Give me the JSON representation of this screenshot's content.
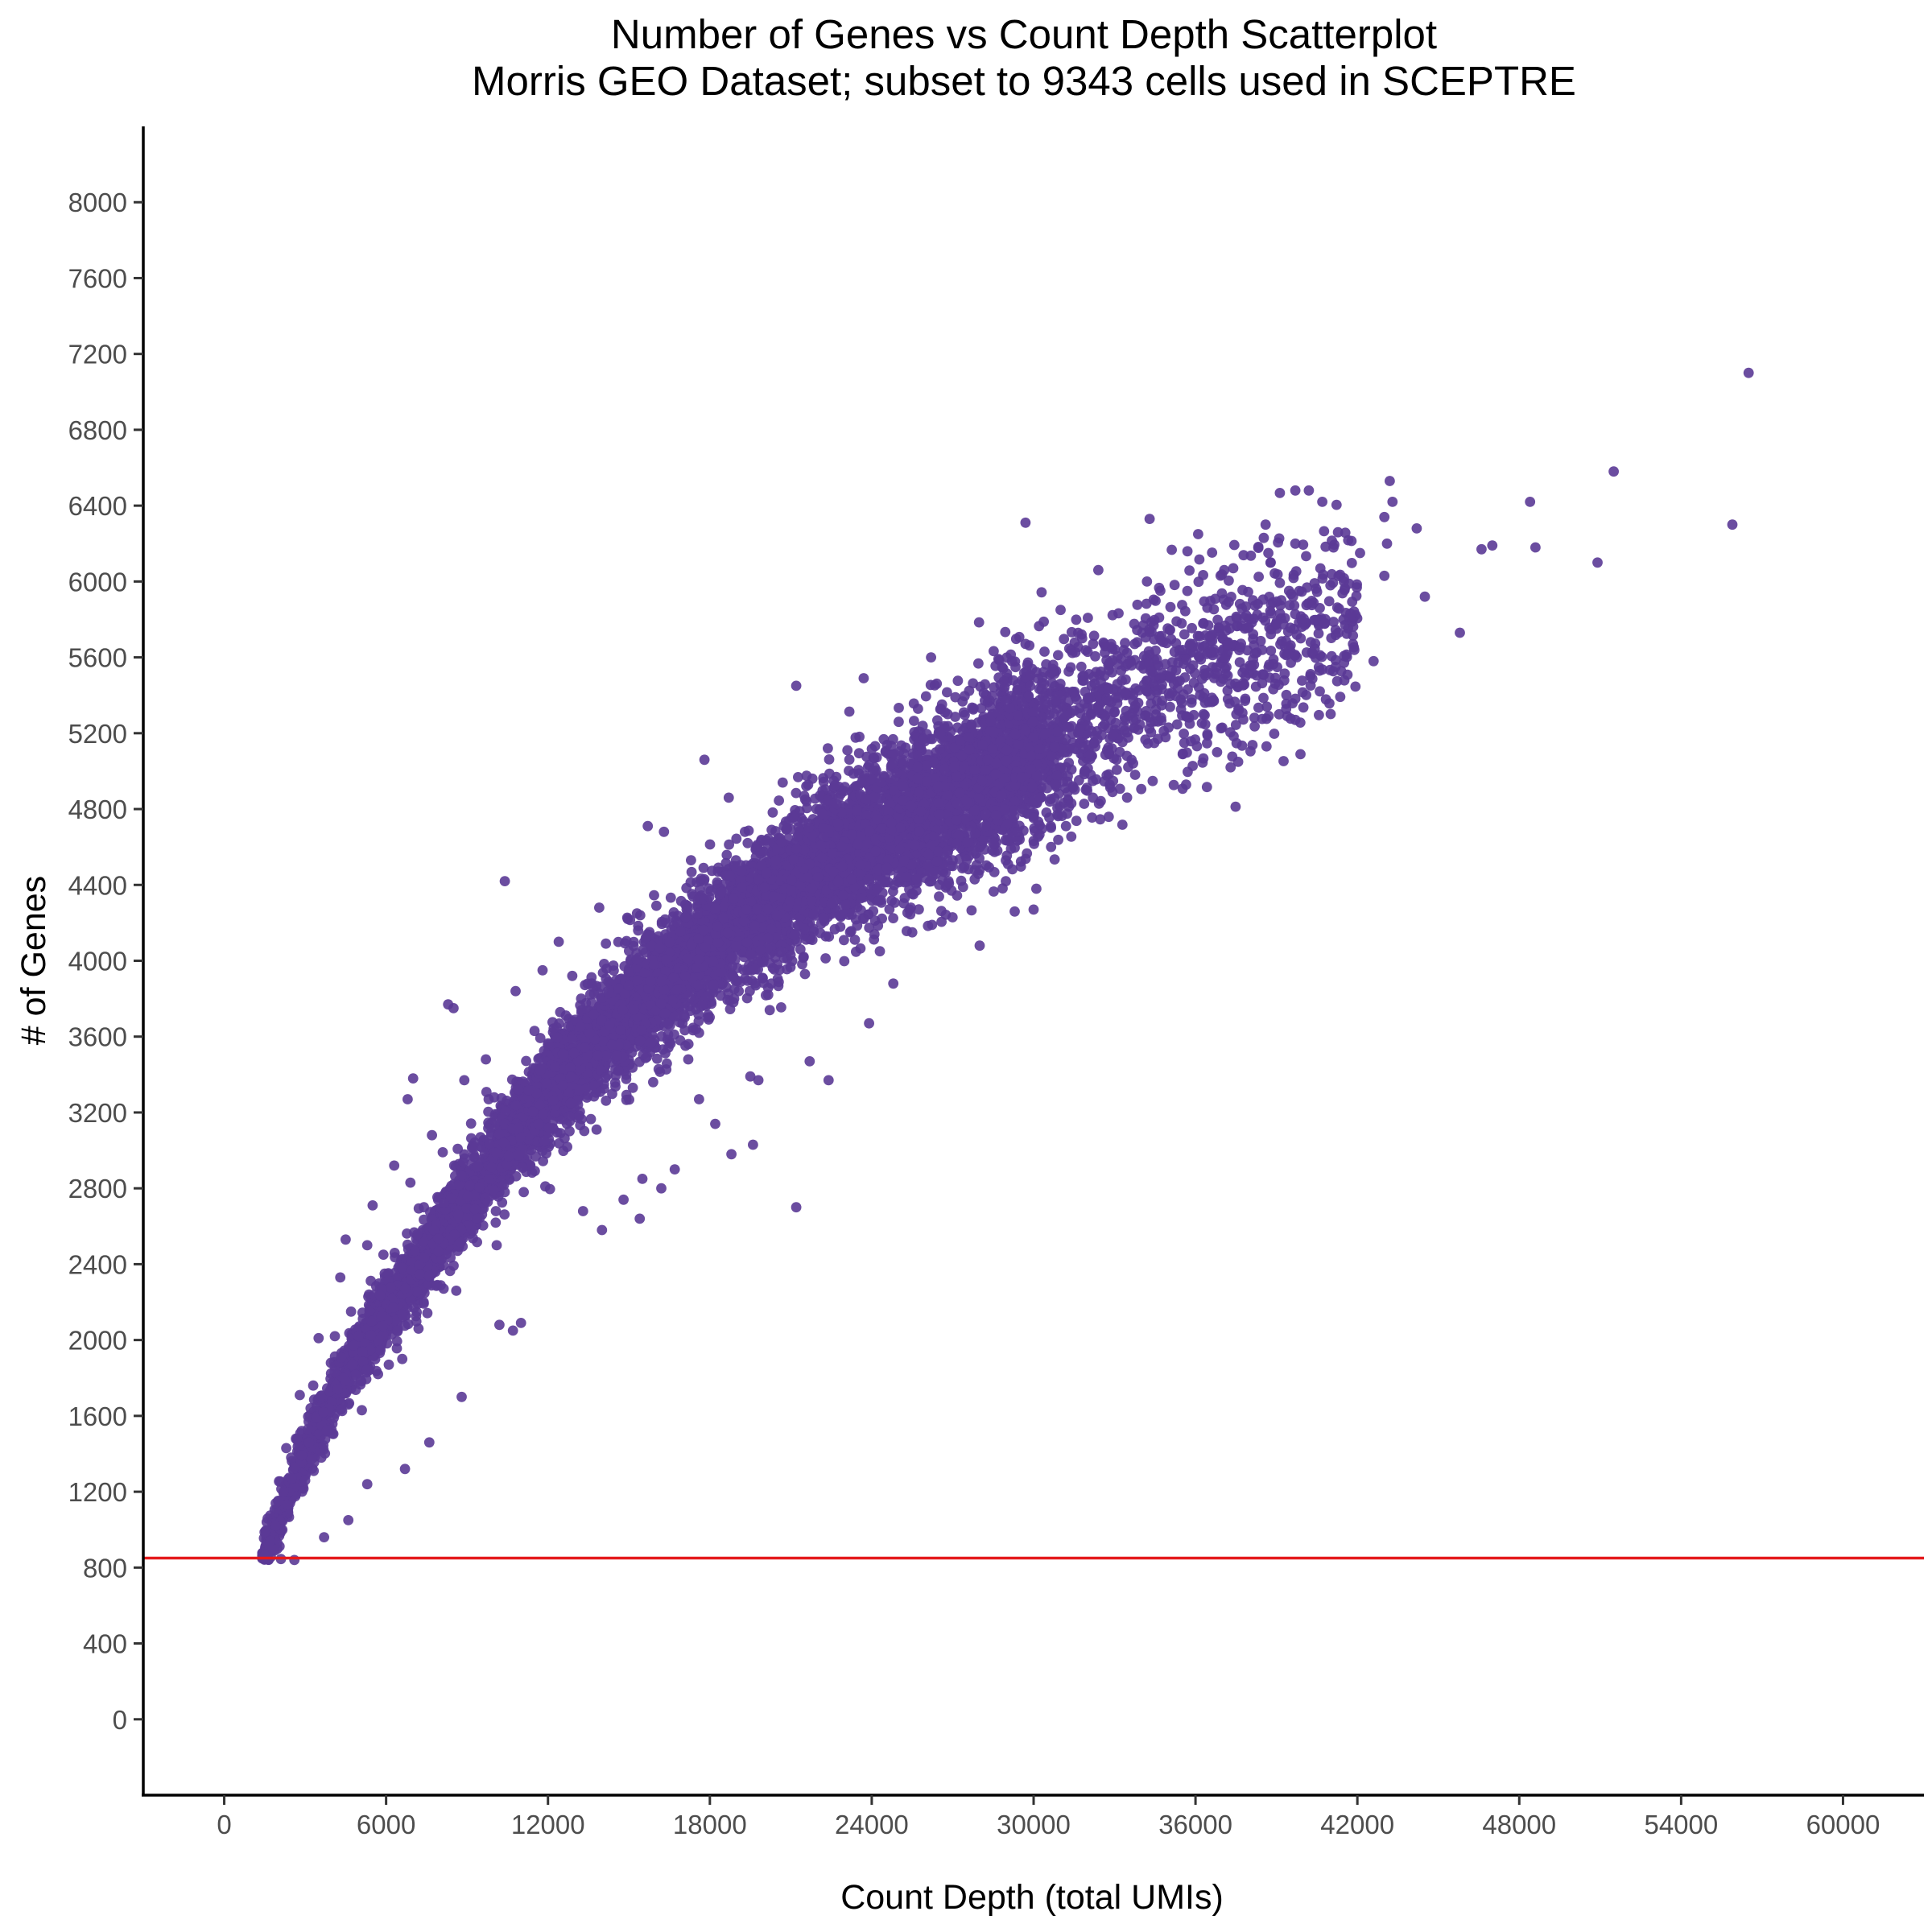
{
  "chart_data": {
    "type": "scatter",
    "title": "Number of Genes vs Count Depth Scatterplot",
    "subtitle": "Morris GEO Dataset; subset to 9343 cells used in SCEPTRE",
    "xlabel": "Count Depth (total UMIs)",
    "ylabel": "# of Genes",
    "xlim": [
      -3000,
      63000
    ],
    "ylim": [
      -400,
      8400
    ],
    "x_ticks": [
      0,
      6000,
      12000,
      18000,
      24000,
      30000,
      36000,
      42000,
      48000,
      54000,
      60000
    ],
    "y_ticks": [
      0,
      400,
      800,
      1200,
      1600,
      2000,
      2400,
      2800,
      3200,
      3600,
      4000,
      4400,
      4800,
      5200,
      5600,
      6000,
      6400,
      6800,
      7200,
      7600,
      8000
    ],
    "grid": false,
    "point_color": "#5b3a96",
    "n_cells": 9343,
    "reference_line": {
      "orientation": "horizontal",
      "y": 850,
      "color": "#e41a1c"
    },
    "trend": {
      "x": [
        1400,
        2000,
        3000,
        4000,
        5000,
        6000,
        7000,
        8000,
        9000,
        10000,
        12000,
        14000,
        16000,
        18000,
        20000,
        22000,
        24000,
        26000,
        28000,
        30000,
        32000,
        34000,
        36000,
        38000,
        40000,
        42000,
        44000,
        48000,
        52000,
        56500
      ],
      "y": [
        850,
        1050,
        1400,
        1700,
        1950,
        2150,
        2350,
        2550,
        2750,
        2950,
        3300,
        3600,
        3850,
        4100,
        4300,
        4500,
        4650,
        4800,
        4950,
        5100,
        5250,
        5400,
        5500,
        5650,
        5750,
        5850,
        5950,
        6100,
        6300,
        6500
      ]
    },
    "points": [
      [
        56500,
        7100
      ],
      [
        51500,
        6580
      ],
      [
        55900,
        6300
      ],
      [
        50900,
        6100
      ],
      [
        48400,
        6420
      ],
      [
        48600,
        6180
      ],
      [
        47000,
        6190
      ],
      [
        46600,
        6170
      ],
      [
        45800,
        5730
      ],
      [
        44500,
        5920
      ],
      [
        44200,
        6280
      ],
      [
        43200,
        6530
      ],
      [
        43300,
        6420
      ],
      [
        43000,
        6340
      ],
      [
        43100,
        6200
      ],
      [
        43000,
        6030
      ],
      [
        42100,
        6150
      ],
      [
        41000,
        5980
      ],
      [
        40700,
        6420
      ],
      [
        40200,
        6480
      ],
      [
        39700,
        6480
      ],
      [
        41500,
        6000
      ],
      [
        42600,
        5580
      ],
      [
        40600,
        5530
      ],
      [
        39400,
        5290
      ],
      [
        39100,
        5300
      ],
      [
        38700,
        6150
      ],
      [
        37300,
        5460
      ],
      [
        37200,
        5380
      ],
      [
        37300,
        5020
      ],
      [
        36800,
        5100
      ],
      [
        35800,
        5540
      ],
      [
        32800,
        5090
      ],
      [
        32200,
        4860
      ],
      [
        31700,
        5220
      ],
      [
        31400,
        4830
      ],
      [
        31200,
        4710
      ],
      [
        30800,
        4930
      ],
      [
        30100,
        4380
      ],
      [
        30000,
        4270
      ],
      [
        29300,
        4260
      ],
      [
        29400,
        4680
      ],
      [
        28500,
        4620
      ],
      [
        28000,
        4080
      ],
      [
        27000,
        4530
      ],
      [
        26500,
        4400
      ],
      [
        25500,
        4150
      ],
      [
        25400,
        4270
      ],
      [
        24800,
        3880
      ],
      [
        24300,
        4050
      ],
      [
        23900,
        3670
      ],
      [
        22400,
        3370
      ],
      [
        21700,
        3470
      ],
      [
        21200,
        2700
      ],
      [
        19800,
        3370
      ],
      [
        19500,
        3390
      ],
      [
        19600,
        3030
      ],
      [
        18800,
        2980
      ],
      [
        18200,
        3140
      ],
      [
        17600,
        3270
      ],
      [
        17200,
        3480
      ],
      [
        16700,
        2900
      ],
      [
        16200,
        2800
      ],
      [
        15500,
        2850
      ],
      [
        15400,
        2640
      ],
      [
        14800,
        2740
      ],
      [
        14000,
        2580
      ],
      [
        13300,
        2680
      ],
      [
        10400,
        4420
      ],
      [
        8300,
        3770
      ],
      [
        8500,
        3750
      ],
      [
        10800,
        3840
      ],
      [
        7000,
        3380
      ],
      [
        6800,
        3270
      ],
      [
        11000,
        2090
      ],
      [
        10700,
        2050
      ],
      [
        10200,
        2080
      ],
      [
        8800,
        1700
      ],
      [
        7600,
        1460
      ],
      [
        6700,
        1320
      ],
      [
        5300,
        1240
      ],
      [
        4600,
        1050
      ],
      [
        3700,
        960
      ],
      [
        2600,
        840
      ],
      [
        4500,
        2530
      ],
      [
        24100,
        4140
      ],
      [
        25700,
        5020
      ],
      [
        31000,
        5850
      ],
      [
        26200,
        5600
      ],
      [
        23700,
        5490
      ],
      [
        21200,
        5450
      ],
      [
        20700,
        4940
      ],
      [
        18700,
        4860
      ],
      [
        17800,
        5060
      ],
      [
        16300,
        4680
      ],
      [
        15700,
        4710
      ],
      [
        13900,
        4280
      ],
      [
        12400,
        4100
      ],
      [
        11800,
        3950
      ],
      [
        9700,
        3480
      ],
      [
        8900,
        3370
      ],
      [
        7700,
        3080
      ],
      [
        6300,
        2920
      ],
      [
        5500,
        2710
      ],
      [
        4300,
        2330
      ],
      [
        3500,
        2010
      ],
      [
        2800,
        1710
      ],
      [
        2300,
        1430
      ],
      [
        2000,
        1150
      ],
      [
        1600,
        870
      ],
      [
        1500,
        860
      ],
      [
        1800,
        900
      ],
      [
        2100,
        1000
      ],
      [
        2500,
        1270
      ],
      [
        3100,
        1530
      ],
      [
        3800,
        1520
      ],
      [
        4200,
        1740
      ],
      [
        5700,
        1820
      ],
      [
        6600,
        1900
      ],
      [
        7900,
        2290
      ],
      [
        9300,
        2690
      ],
      [
        11100,
        2780
      ],
      [
        12700,
        3140
      ],
      [
        14600,
        3420
      ],
      [
        16900,
        3580
      ],
      [
        18900,
        3800
      ],
      [
        20500,
        3980
      ],
      [
        22800,
        4240
      ],
      [
        25200,
        4530
      ],
      [
        27800,
        4790
      ],
      [
        29900,
        5010
      ],
      [
        33700,
        5270
      ],
      [
        35200,
        5460
      ],
      [
        38200,
        5620
      ],
      [
        36300,
        5780
      ],
      [
        34200,
        6000
      ],
      [
        32400,
        6060
      ],
      [
        29700,
        6310
      ],
      [
        34300,
        6330
      ],
      [
        36100,
        6250
      ],
      [
        38600,
        6300
      ],
      [
        39700,
        6200
      ],
      [
        37400,
        6070
      ],
      [
        33400,
        5410
      ],
      [
        27600,
        5180
      ],
      [
        24700,
        4960
      ],
      [
        22200,
        4700
      ],
      [
        20100,
        4460
      ],
      [
        17100,
        4230
      ],
      [
        15000,
        3940
      ],
      [
        13200,
        3650
      ],
      [
        10900,
        3320
      ],
      [
        9500,
        3070
      ],
      [
        7400,
        2700
      ],
      [
        5900,
        2450
      ],
      [
        4700,
        2150
      ],
      [
        3300,
        1760
      ],
      [
        2700,
        1480
      ],
      [
        2200,
        1200
      ],
      [
        3000,
        1260
      ],
      [
        3600,
        1380
      ],
      [
        5100,
        1630
      ],
      [
        6100,
        1870
      ],
      [
        7200,
        2060
      ],
      [
        8600,
        2260
      ],
      [
        10100,
        2500
      ],
      [
        11900,
        2810
      ],
      [
        13800,
        3110
      ],
      [
        15900,
        3360
      ],
      [
        17600,
        3620
      ],
      [
        19700,
        3870
      ],
      [
        21800,
        4110
      ],
      [
        23600,
        4330
      ],
      [
        26100,
        4560
      ],
      [
        28200,
        4710
      ],
      [
        30500,
        4910
      ],
      [
        32900,
        5120
      ],
      [
        35000,
        5230
      ],
      [
        37600,
        5320
      ],
      [
        39900,
        5700
      ],
      [
        41300,
        5730
      ],
      [
        40800,
        5780
      ],
      [
        38800,
        5880
      ],
      [
        35700,
        5950
      ],
      [
        31800,
        5700
      ],
      [
        29200,
        5580
      ],
      [
        27100,
        5390
      ],
      [
        25000,
        5260
      ],
      [
        23100,
        5110
      ],
      [
        21500,
        4870
      ],
      [
        19300,
        4680
      ],
      [
        17300,
        4530
      ],
      [
        15300,
        4250
      ],
      [
        12900,
        3920
      ],
      [
        11500,
        3630
      ],
      [
        9800,
        3270
      ],
      [
        8100,
        2990
      ],
      [
        6900,
        2830
      ],
      [
        5300,
        2500
      ],
      [
        4100,
        2020
      ],
      [
        3200,
        1640
      ],
      [
        2600,
        1330
      ],
      [
        1900,
        1020
      ],
      [
        1700,
        940
      ]
    ]
  }
}
